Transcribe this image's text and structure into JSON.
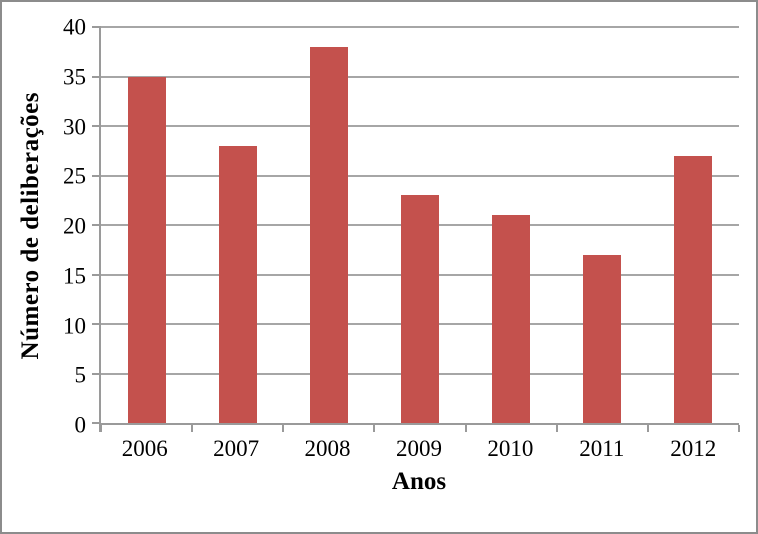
{
  "chart_data": {
    "type": "bar",
    "title": "",
    "categories": [
      "2006",
      "2007",
      "2008",
      "2009",
      "2010",
      "2011",
      "2012"
    ],
    "values": [
      35,
      28,
      38,
      23,
      21,
      17,
      27
    ],
    "xlabel": "Anos",
    "ylabel": "Número de deliberações",
    "ylim": [
      0,
      40
    ],
    "yticks": [
      0,
      5,
      10,
      15,
      20,
      25,
      30,
      35,
      40
    ],
    "grid": true,
    "legend": "none",
    "bar_color": "#c4514d",
    "gridline_color": "#a6a6a6",
    "axis_color": "#9a9a9a",
    "text_color": "#000000",
    "frame_border_color": "#8c8c8c",
    "background_color": "#ffffff"
  }
}
